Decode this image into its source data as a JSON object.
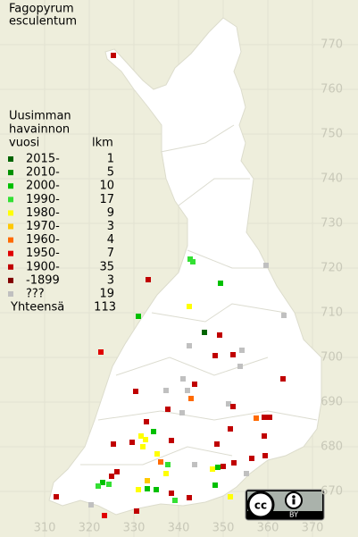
{
  "title_lines": [
    "Fagopyrum",
    "esculentum"
  ],
  "legend": {
    "heading_lines": [
      "Uusimman",
      "havainnon",
      "vuosi"
    ],
    "count_heading": "lkm",
    "entries": [
      {
        "label": "2015-",
        "count": 1,
        "color": "#006400"
      },
      {
        "label": "2010-",
        "count": 5,
        "color": "#009000"
      },
      {
        "label": "2000-",
        "count": 10,
        "color": "#00c000"
      },
      {
        "label": "1990-",
        "count": 17,
        "color": "#33e033"
      },
      {
        "label": "1980-",
        "count": 9,
        "color": "#ffff00"
      },
      {
        "label": "1970-",
        "count": 3,
        "color": "#ffc800"
      },
      {
        "label": "1960-",
        "count": 4,
        "color": "#ff6a00"
      },
      {
        "label": "1950-",
        "count": 7,
        "color": "#e00000"
      },
      {
        "label": "1900-",
        "count": 35,
        "color": "#c00000"
      },
      {
        "label": "-1899",
        "count": 3,
        "color": "#800000"
      },
      {
        "label": "???",
        "count": 19,
        "color": "#c0c0c0"
      }
    ],
    "total_label": "Yhteensä",
    "total": 113
  },
  "xlim": [
    300,
    380.2
  ],
  "ylim": [
    659.8,
    780
  ],
  "xticks": [
    310,
    320,
    330,
    340,
    350,
    360,
    370
  ],
  "yticks": [
    670,
    680,
    690,
    700,
    710,
    720,
    730,
    740,
    750,
    760,
    770
  ],
  "observations": [
    {
      "x": 325.4,
      "y": 767.6,
      "period": 8
    },
    {
      "x": 342.6,
      "y": 722,
      "period": 3
    },
    {
      "x": 343.2,
      "y": 721.4,
      "period": 3
    },
    {
      "x": 359.6,
      "y": 720.6,
      "period": 10
    },
    {
      "x": 333.2,
      "y": 717.4,
      "period": 8
    },
    {
      "x": 349.4,
      "y": 716.6,
      "period": 2
    },
    {
      "x": 342.4,
      "y": 711.4,
      "period": 4
    },
    {
      "x": 331,
      "y": 709.2,
      "period": 2
    },
    {
      "x": 363.6,
      "y": 709.4,
      "period": 10
    },
    {
      "x": 349.2,
      "y": 705,
      "period": 8
    },
    {
      "x": 345.8,
      "y": 705.6,
      "period": 0
    },
    {
      "x": 342.4,
      "y": 702.6,
      "period": 10
    },
    {
      "x": 322.6,
      "y": 701.2,
      "period": 7
    },
    {
      "x": 348.2,
      "y": 700.4,
      "period": 8
    },
    {
      "x": 352.2,
      "y": 700.6,
      "period": 8
    },
    {
      "x": 353.8,
      "y": 698,
      "period": 10
    },
    {
      "x": 354.2,
      "y": 701.6,
      "period": 10
    },
    {
      "x": 363.4,
      "y": 695.2,
      "period": 8
    },
    {
      "x": 341,
      "y": 695.2,
      "period": 10
    },
    {
      "x": 342,
      "y": 692.6,
      "period": 10
    },
    {
      "x": 337.2,
      "y": 692.6,
      "period": 10
    },
    {
      "x": 343.6,
      "y": 694,
      "period": 8
    },
    {
      "x": 342.8,
      "y": 690.8,
      "period": 6
    },
    {
      "x": 330.4,
      "y": 692.4,
      "period": 8
    },
    {
      "x": 337.6,
      "y": 688.4,
      "period": 8
    },
    {
      "x": 340.8,
      "y": 687.6,
      "period": 10
    },
    {
      "x": 351.2,
      "y": 689.6,
      "period": 10
    },
    {
      "x": 352.2,
      "y": 689,
      "period": 8
    },
    {
      "x": 357.4,
      "y": 686.4,
      "period": 6
    },
    {
      "x": 359.2,
      "y": 686.6,
      "period": 8
    },
    {
      "x": 360.4,
      "y": 686.6,
      "period": 8
    },
    {
      "x": 332.8,
      "y": 685.6,
      "period": 8
    },
    {
      "x": 334.4,
      "y": 683.4,
      "period": 2
    },
    {
      "x": 331.6,
      "y": 682.4,
      "period": 4
    },
    {
      "x": 332.6,
      "y": 681.6,
      "period": 4
    },
    {
      "x": 332,
      "y": 680,
      "period": 4
    },
    {
      "x": 338.4,
      "y": 681.4,
      "period": 8
    },
    {
      "x": 351.6,
      "y": 684,
      "period": 8
    },
    {
      "x": 348.6,
      "y": 680.6,
      "period": 8
    },
    {
      "x": 359.2,
      "y": 682.4,
      "period": 8
    },
    {
      "x": 359.4,
      "y": 678,
      "period": 8
    },
    {
      "x": 325.4,
      "y": 680.6,
      "period": 8
    },
    {
      "x": 329.6,
      "y": 681,
      "period": 8
    },
    {
      "x": 335.2,
      "y": 678.4,
      "period": 4
    },
    {
      "x": 336,
      "y": 676.6,
      "period": 6
    },
    {
      "x": 337.6,
      "y": 676,
      "period": 3
    },
    {
      "x": 337.2,
      "y": 674,
      "period": 4
    },
    {
      "x": 333,
      "y": 672.4,
      "period": 5
    },
    {
      "x": 343.6,
      "y": 676,
      "period": 10
    },
    {
      "x": 347.6,
      "y": 675,
      "period": 4
    },
    {
      "x": 348.8,
      "y": 675.4,
      "period": 2
    },
    {
      "x": 350,
      "y": 675.6,
      "period": 8
    },
    {
      "x": 352.4,
      "y": 676.4,
      "period": 8
    },
    {
      "x": 356.4,
      "y": 677.4,
      "period": 8
    },
    {
      "x": 355.2,
      "y": 674,
      "period": 10
    },
    {
      "x": 326.2,
      "y": 674.4,
      "period": 8
    },
    {
      "x": 323,
      "y": 672,
      "period": 2
    },
    {
      "x": 324.4,
      "y": 671.6,
      "period": 3
    },
    {
      "x": 322,
      "y": 671.2,
      "period": 3
    },
    {
      "x": 325,
      "y": 673.4,
      "period": 8
    },
    {
      "x": 331,
      "y": 670.4,
      "period": 4
    },
    {
      "x": 333,
      "y": 670.6,
      "period": 2
    },
    {
      "x": 335,
      "y": 670.4,
      "period": 2
    },
    {
      "x": 338.4,
      "y": 669.6,
      "period": 8
    },
    {
      "x": 339.2,
      "y": 668,
      "period": 3
    },
    {
      "x": 342.4,
      "y": 668.6,
      "period": 8
    },
    {
      "x": 348.2,
      "y": 671.4,
      "period": 2
    },
    {
      "x": 351.6,
      "y": 668.8,
      "period": 4
    },
    {
      "x": 312.6,
      "y": 668.8,
      "period": 8
    },
    {
      "x": 320.4,
      "y": 667,
      "period": 10
    },
    {
      "x": 330.6,
      "y": 665.6,
      "period": 8
    },
    {
      "x": 323.4,
      "y": 664.6,
      "period": 7
    }
  ],
  "badge": "BY"
}
